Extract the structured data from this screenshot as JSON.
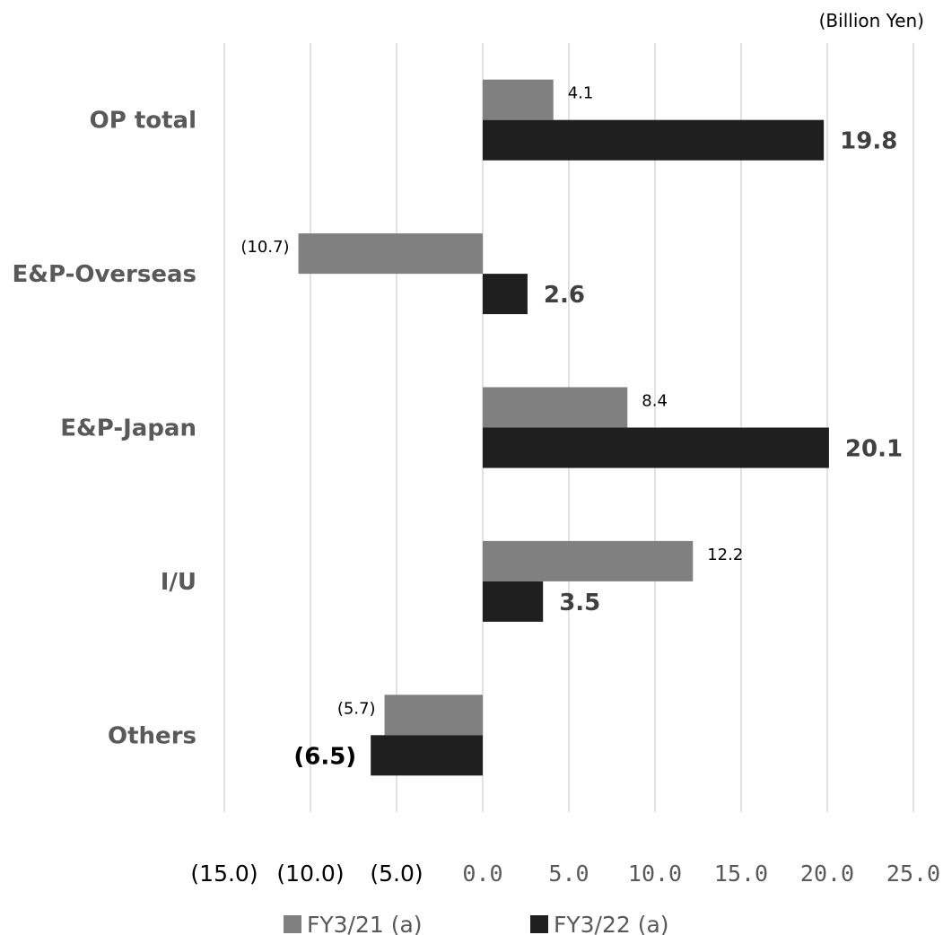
{
  "chart_data": {
    "type": "bar",
    "orientation": "horizontal",
    "unit_label": "(Billion Yen)",
    "categories": [
      "OP total",
      "E&P-Overseas",
      "E&P-Japan",
      "I/U",
      "Others"
    ],
    "series": [
      {
        "name": "FY3/21 (a)",
        "color": "#808080",
        "values": [
          4.1,
          -10.7,
          8.4,
          12.2,
          -5.7
        ],
        "labels": [
          "4.1",
          "(10.7)",
          "8.4",
          "12.2",
          "(5.7)"
        ]
      },
      {
        "name": "FY3/22 (a)",
        "color": "#1f1f1f",
        "values": [
          19.8,
          2.6,
          20.1,
          3.5,
          -6.5
        ],
        "labels": [
          "19.8",
          "2.6",
          "20.1",
          "3.5",
          "(6.5)"
        ]
      }
    ],
    "xlim": [
      -15,
      25
    ],
    "xticks": [
      -15,
      -10,
      -5,
      0,
      5,
      10,
      15,
      20,
      25
    ],
    "xtick_labels": [
      "(15.0)",
      "(10.0)",
      "(5.0)",
      "0.0",
      "5.0",
      "10.0",
      "15.0",
      "20.0",
      "25.0"
    ],
    "grid": true,
    "legend_position": "bottom"
  }
}
